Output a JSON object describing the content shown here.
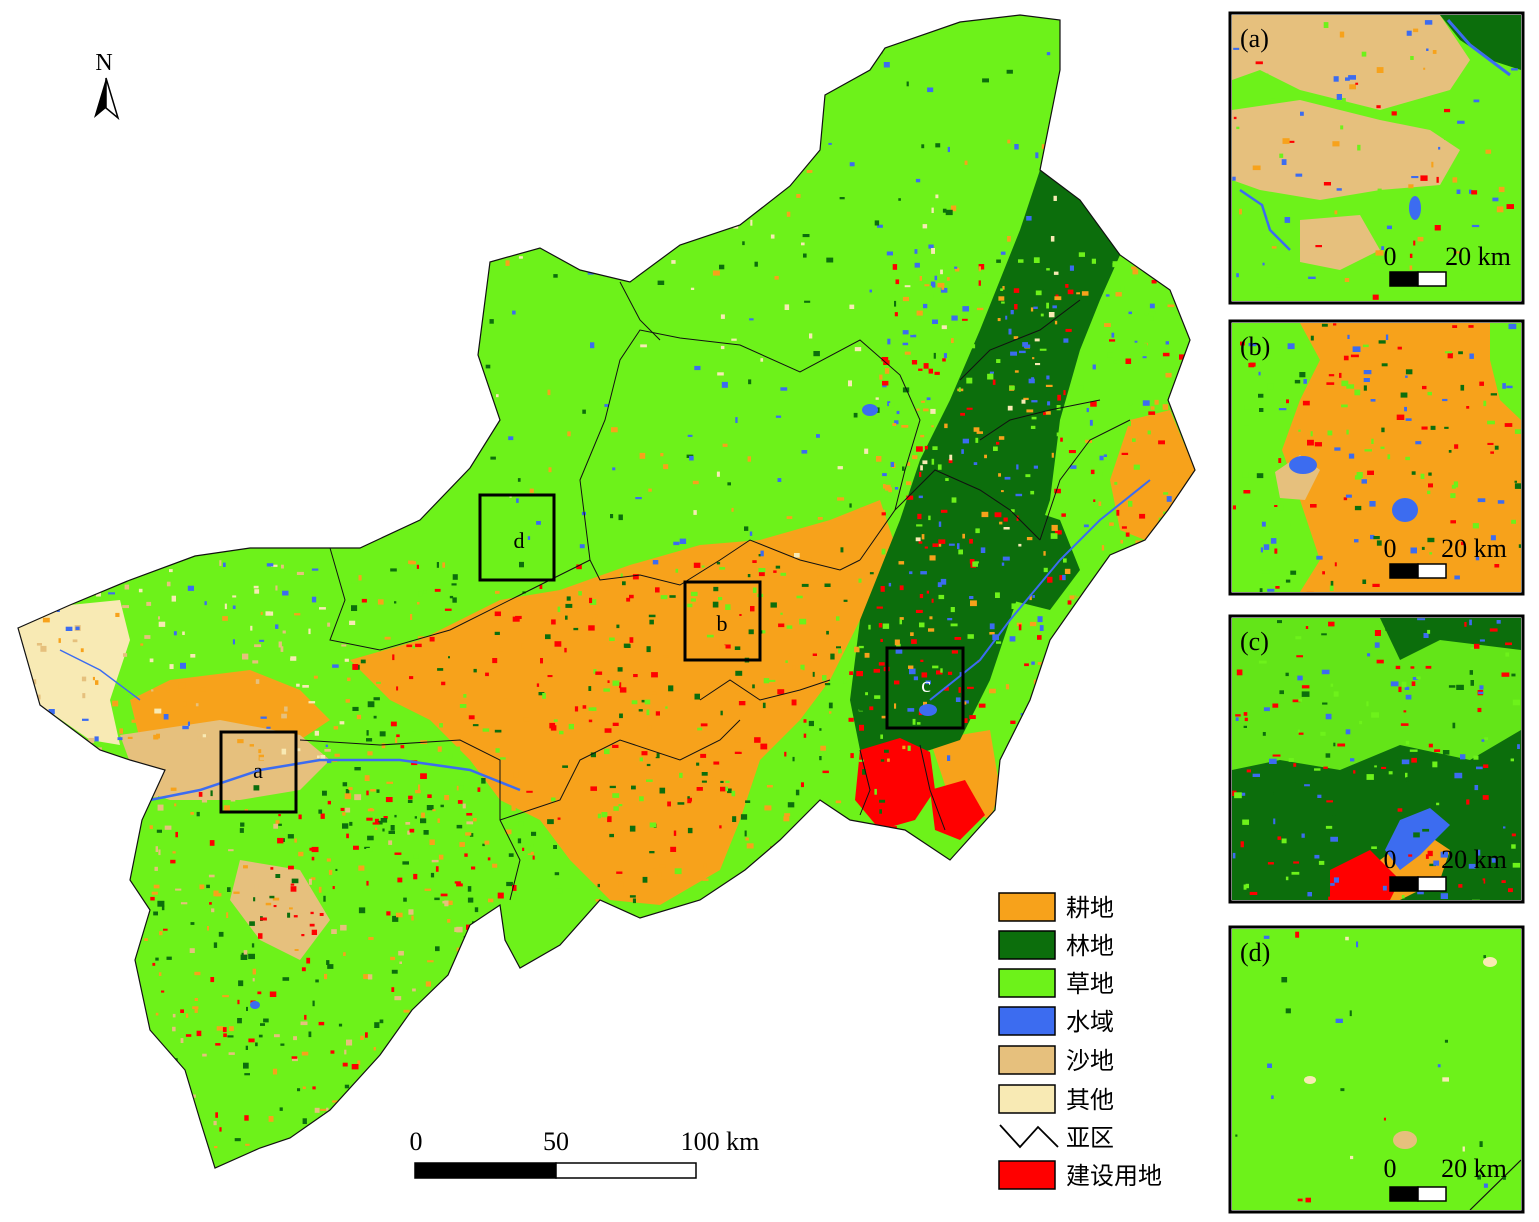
{
  "north_arrow": {
    "label": "N"
  },
  "main_map": {
    "boxes": [
      {
        "id": "a",
        "label": "a"
      },
      {
        "id": "b",
        "label": "b"
      },
      {
        "id": "c",
        "label": "c"
      },
      {
        "id": "d",
        "label": "d"
      }
    ],
    "scalebar": {
      "t0": "0",
      "t1": "50",
      "t2": "100 km"
    }
  },
  "legend": [
    {
      "label": "耕地",
      "color": "#f7a21b",
      "type": "swatch"
    },
    {
      "label": "林地",
      "color": "#0c6e0c",
      "type": "swatch"
    },
    {
      "label": "草地",
      "color": "#6df21a",
      "type": "swatch"
    },
    {
      "label": "水域",
      "color": "#3c6cf0",
      "type": "swatch"
    },
    {
      "label": "沙地",
      "color": "#e6c07d",
      "type": "swatch"
    },
    {
      "label": "其他",
      "color": "#f8eab4",
      "type": "swatch"
    },
    {
      "label": "亚区",
      "color": "#000000",
      "type": "line"
    },
    {
      "label": "建设用地",
      "color": "#ff0000",
      "type": "swatch"
    }
  ],
  "insets": [
    {
      "id": "a",
      "label": "(a)",
      "scale_t0": "0",
      "scale_t1": "20 km"
    },
    {
      "id": "b",
      "label": "(b)",
      "scale_t0": "0",
      "scale_t1": "20 km"
    },
    {
      "id": "c",
      "label": "(c)",
      "scale_t0": "0",
      "scale_t1": "20 km"
    },
    {
      "id": "d",
      "label": "(d)",
      "scale_t0": "0",
      "scale_t1": "20 km"
    }
  ]
}
